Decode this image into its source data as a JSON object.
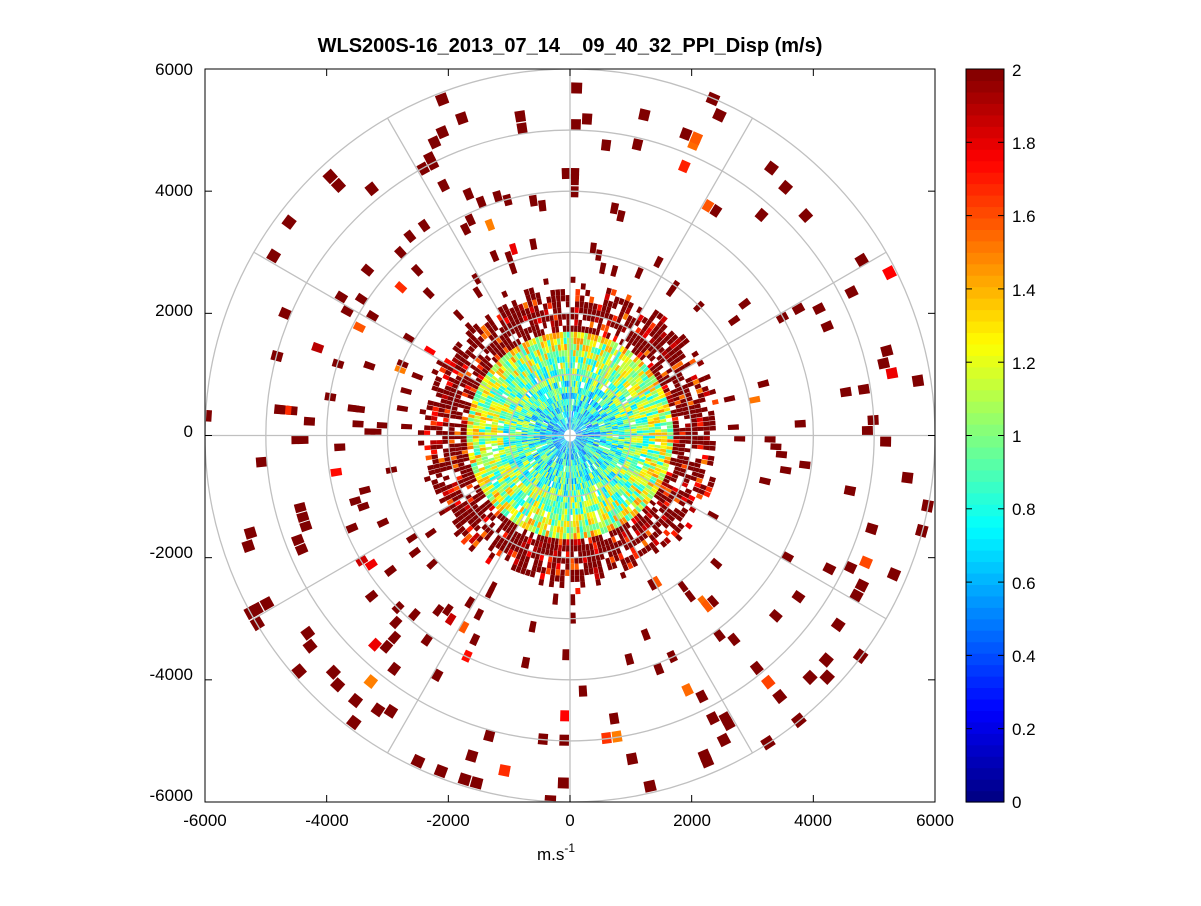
{
  "chart_data": {
    "type": "heatmap",
    "subtype": "polar-ppi",
    "title": "WLS200S-16_2013_07_14__09_40_32_PPI_Disp (m/s)",
    "xlabel_base": "m.s",
    "xlabel_exp": "-1",
    "ylabel": "",
    "xlim": [
      -6000,
      6000
    ],
    "ylim": [
      -6000,
      6000
    ],
    "x_ticks": [
      "-6000",
      "-4000",
      "-2000",
      "0",
      "2000",
      "4000",
      "6000"
    ],
    "y_ticks": [
      "6000",
      "4000",
      "2000",
      "0",
      "-2000",
      "-4000",
      "-6000"
    ],
    "range_rings": [
      1000,
      2000,
      3000,
      4000,
      5000,
      6000
    ],
    "spoke_angles_deg": [
      0,
      30,
      60,
      90,
      120,
      150,
      180,
      210,
      240,
      270,
      300,
      330
    ],
    "colorbar": {
      "colormap": "jet",
      "range": [
        0,
        2
      ],
      "ticks": [
        "0",
        "0.2",
        "0.4",
        "0.6",
        "0.8",
        "1",
        "1.2",
        "1.4",
        "1.6",
        "1.8",
        "2"
      ]
    },
    "field_description": {
      "dense_core_radius_m": 2200,
      "core_value_center": 0.6,
      "core_value_edge": 2.0,
      "sparse_outer_value": 2.0,
      "max_range_m": 6000
    },
    "colors": {
      "grid": "#c0c0c0",
      "axes": "#000000",
      "background": "#ffffff"
    }
  }
}
